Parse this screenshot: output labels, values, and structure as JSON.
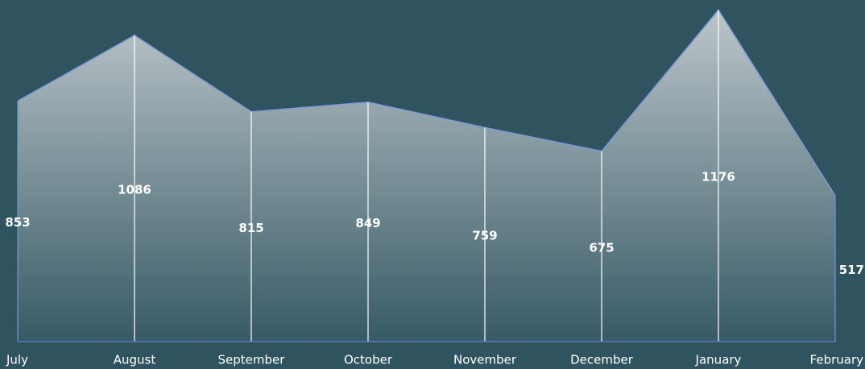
{
  "chart_data": {
    "type": "area",
    "categories": [
      "July",
      "August",
      "September",
      "October",
      "November",
      "December",
      "January",
      "February"
    ],
    "values": [
      853,
      1086,
      815,
      849,
      759,
      675,
      1176,
      517
    ],
    "color": "#c4ccd0",
    "ylim": [
      0,
      1200
    ],
    "data_labels": true
  }
}
